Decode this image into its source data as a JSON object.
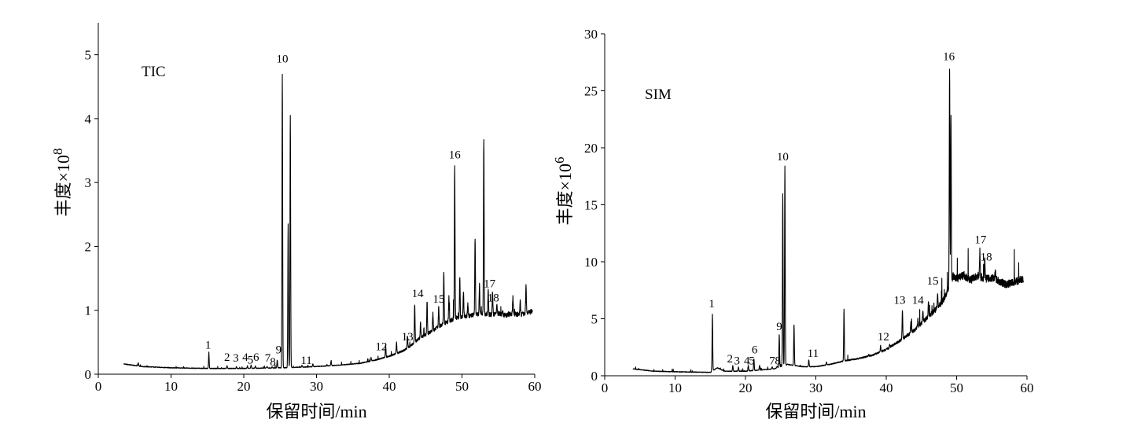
{
  "chart_data": [
    {
      "type": "line",
      "title": "",
      "panel_label": "TIC",
      "xlabel": "保留时间/min",
      "ylabel_main": "丰度×10",
      "ylabel_exp": "8",
      "xlim": [
        0,
        60
      ],
      "ylim": [
        0,
        5.5
      ],
      "xticks": [
        0,
        10,
        20,
        30,
        40,
        50,
        60
      ],
      "yticks": [
        0,
        1,
        2,
        3,
        4,
        5
      ],
      "series": [
        {
          "baseline": [
            [
              3.5,
              0.16
            ],
            [
              6,
              0.12
            ],
            [
              10,
              0.1
            ],
            [
              15,
              0.09
            ],
            [
              20,
              0.09
            ],
            [
              25,
              0.1
            ],
            [
              28,
              0.11
            ],
            [
              30,
              0.12
            ],
            [
              33,
              0.14
            ],
            [
              36,
              0.17
            ],
            [
              38,
              0.22
            ],
            [
              40,
              0.28
            ],
            [
              42,
              0.37
            ],
            [
              43,
              0.45
            ],
            [
              44,
              0.55
            ],
            [
              45,
              0.62
            ],
            [
              46,
              0.68
            ],
            [
              47,
              0.76
            ],
            [
              48,
              0.82
            ],
            [
              49,
              0.87
            ],
            [
              50,
              0.9
            ],
            [
              51,
              0.92
            ],
            [
              52,
              0.93
            ],
            [
              53,
              0.95
            ],
            [
              54,
              0.93
            ],
            [
              55,
              0.95
            ],
            [
              56,
              0.92
            ],
            [
              57,
              0.95
            ],
            [
              58,
              0.93
            ],
            [
              59,
              0.97
            ],
            [
              59.7,
              0.98
            ]
          ],
          "peaks": [
            [
              5.5,
              0.18
            ],
            [
              15.2,
              0.32
            ],
            [
              17.7,
              0.13
            ],
            [
              19.0,
              0.12
            ],
            [
              20.5,
              0.13
            ],
            [
              21.0,
              0.14
            ],
            [
              21.6,
              0.13
            ],
            [
              23.2,
              0.12
            ],
            [
              23.9,
              0.12
            ],
            [
              24.6,
              0.22
            ],
            [
              25.3,
              4.7
            ],
            [
              26.4,
              4.05
            ],
            [
              26.1,
              2.35
            ],
            [
              28.0,
              0.14
            ],
            [
              29.5,
              0.16
            ],
            [
              32.0,
              0.2
            ],
            [
              37.5,
              0.26
            ],
            [
              39.5,
              0.45
            ],
            [
              41.0,
              0.5
            ],
            [
              42.5,
              0.6
            ],
            [
              43.5,
              1.1
            ],
            [
              44.3,
              0.8
            ],
            [
              45.2,
              1.15
            ],
            [
              46.0,
              0.95
            ],
            [
              46.8,
              1.05
            ],
            [
              47.5,
              1.58
            ],
            [
              48.2,
              1.2
            ],
            [
              49.0,
              3.25
            ],
            [
              49.7,
              1.5
            ],
            [
              50.2,
              1.3
            ],
            [
              50.8,
              1.1
            ],
            [
              51.8,
              2.15
            ],
            [
              52.4,
              1.4
            ],
            [
              53.0,
              3.7
            ],
            [
              53.6,
              1.3
            ],
            [
              54.2,
              1.3
            ],
            [
              54.8,
              1.1
            ],
            [
              55.6,
              1.0
            ],
            [
              57.0,
              1.2
            ],
            [
              58.0,
              1.15
            ],
            [
              58.8,
              1.4
            ]
          ]
        }
      ],
      "peak_labels": [
        {
          "text": "1",
          "x": 15.1,
          "y": 0.36
        },
        {
          "text": "2",
          "x": 17.7,
          "y": 0.17
        },
        {
          "text": "3",
          "x": 18.9,
          "y": 0.16
        },
        {
          "text": "4",
          "x": 20.2,
          "y": 0.17
        },
        {
          "text": "5",
          "x": 20.9,
          "y": 0.13
        },
        {
          "text": "6",
          "x": 21.7,
          "y": 0.17
        },
        {
          "text": "7",
          "x": 23.3,
          "y": 0.16
        },
        {
          "text": "8",
          "x": 24.0,
          "y": 0.1
        },
        {
          "text": "9",
          "x": 24.8,
          "y": 0.29
        },
        {
          "text": "10",
          "x": 25.3,
          "y": 4.84
        },
        {
          "text": "11",
          "x": 28.6,
          "y": 0.12
        },
        {
          "text": "12",
          "x": 38.9,
          "y": 0.34
        },
        {
          "text": "13",
          "x": 42.5,
          "y": 0.49
        },
        {
          "text": "14",
          "x": 43.9,
          "y": 1.17
        },
        {
          "text": "15",
          "x": 46.8,
          "y": 1.08
        },
        {
          "text": "16",
          "x": 49.0,
          "y": 3.34
        },
        {
          "text": "17",
          "x": 53.8,
          "y": 1.32
        },
        {
          "text": "18",
          "x": 54.3,
          "y": 1.1
        }
      ]
    },
    {
      "type": "line",
      "title": "",
      "panel_label": "SIM",
      "xlabel": "保留时间/min",
      "ylabel_main": "丰度×10",
      "ylabel_exp": "6",
      "xlim": [
        0,
        60
      ],
      "ylim": [
        0,
        30
      ],
      "xticks": [
        0,
        10,
        20,
        30,
        40,
        50,
        60
      ],
      "yticks": [
        0,
        5,
        10,
        15,
        20,
        25,
        30
      ],
      "series": [
        {
          "baseline": [
            [
              4,
              0.6
            ],
            [
              7,
              0.4
            ],
            [
              10,
              0.35
            ],
            [
              15,
              0.3
            ],
            [
              16,
              0.7
            ],
            [
              17,
              0.4
            ],
            [
              20,
              0.4
            ],
            [
              22,
              0.5
            ],
            [
              24,
              0.6
            ],
            [
              26,
              1.0
            ],
            [
              28,
              0.8
            ],
            [
              30,
              0.8
            ],
            [
              32,
              1.0
            ],
            [
              34,
              1.3
            ],
            [
              36,
              1.5
            ],
            [
              38,
              1.8
            ],
            [
              40,
              2.3
            ],
            [
              42,
              3.1
            ],
            [
              44,
              4.0
            ],
            [
              46,
              5.2
            ],
            [
              47,
              5.8
            ],
            [
              48,
              6.5
            ],
            [
              48.8,
              7.5
            ],
            [
              49.5,
              8.8
            ],
            [
              50,
              8.5
            ],
            [
              51,
              8.8
            ],
            [
              52,
              8.4
            ],
            [
              53,
              8.8
            ],
            [
              54,
              8.5
            ],
            [
              55,
              8.6
            ],
            [
              56,
              8.3
            ],
            [
              57,
              8.0
            ],
            [
              58,
              8.2
            ],
            [
              59.5,
              8.5
            ]
          ],
          "peaks": [
            [
              15.3,
              5.4
            ],
            [
              18.2,
              0.9
            ],
            [
              19.0,
              0.75
            ],
            [
              20.4,
              0.9
            ],
            [
              21.2,
              1.5
            ],
            [
              22.0,
              0.9
            ],
            [
              23.8,
              0.8
            ],
            [
              24.5,
              0.85
            ],
            [
              24.8,
              3.6
            ],
            [
              25.3,
              16
            ],
            [
              25.6,
              18.4
            ],
            [
              26.9,
              4.5
            ],
            [
              29.0,
              1.4
            ],
            [
              31.5,
              1.2
            ],
            [
              34.0,
              5.8
            ],
            [
              37.5,
              1.9
            ],
            [
              39.2,
              2.6
            ],
            [
              40.5,
              2.8
            ],
            [
              42.3,
              5.8
            ],
            [
              43.5,
              4.8
            ],
            [
              44.5,
              5.0
            ],
            [
              45.2,
              5.8
            ],
            [
              46.0,
              6.5
            ],
            [
              47.3,
              7.0
            ],
            [
              49.0,
              27.0
            ],
            [
              49.2,
              23.0
            ],
            [
              51.0,
              9.0
            ],
            [
              53.3,
              11.0
            ],
            [
              54.0,
              10.2
            ],
            [
              55.5,
              9.2
            ]
          ]
        }
      ],
      "peak_labels": [
        {
          "text": "1",
          "x": 15.2,
          "y": 5.8
        },
        {
          "text": "2",
          "x": 17.8,
          "y": 0.95
        },
        {
          "text": "3",
          "x": 18.8,
          "y": 0.8
        },
        {
          "text": "4",
          "x": 20.2,
          "y": 0.8
        },
        {
          "text": "5",
          "x": 20.9,
          "y": 0.8
        },
        {
          "text": "6",
          "x": 21.3,
          "y": 1.75
        },
        {
          "text": "7",
          "x": 23.8,
          "y": 0.8
        },
        {
          "text": "8",
          "x": 24.6,
          "y": 0.8
        },
        {
          "text": "9",
          "x": 24.8,
          "y": 3.8
        },
        {
          "text": "10",
          "x": 25.3,
          "y": 18.7
        },
        {
          "text": "11",
          "x": 29.6,
          "y": 1.45
        },
        {
          "text": "12",
          "x": 39.6,
          "y": 2.9
        },
        {
          "text": "13",
          "x": 41.9,
          "y": 6.1
        },
        {
          "text": "14",
          "x": 44.5,
          "y": 6.1
        },
        {
          "text": "15",
          "x": 46.6,
          "y": 7.8
        },
        {
          "text": "16",
          "x": 48.9,
          "y": 27.5
        },
        {
          "text": "17",
          "x": 53.4,
          "y": 11.4
        },
        {
          "text": "18",
          "x": 54.2,
          "y": 9.9
        }
      ]
    }
  ]
}
